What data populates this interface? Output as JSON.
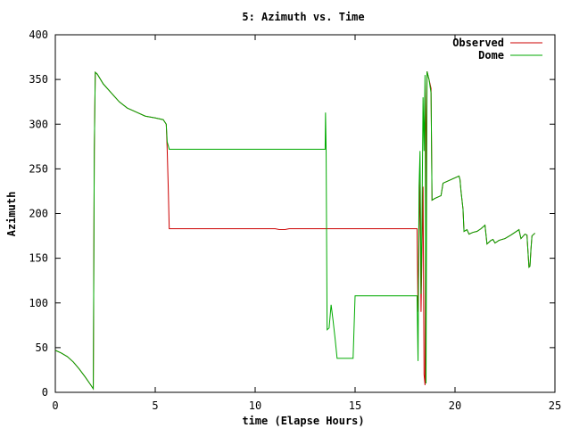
{
  "chart_data": {
    "type": "line",
    "title": "5: Azimuth vs. Time",
    "xlabel": "time (Elapse Hours)",
    "ylabel": "Azimuth",
    "xlim": [
      0,
      25
    ],
    "ylim": [
      0,
      400
    ],
    "x_ticks": [
      0,
      5,
      10,
      15,
      20,
      25
    ],
    "y_ticks": [
      0,
      50,
      100,
      150,
      200,
      250,
      300,
      350,
      400
    ],
    "grid": false,
    "legend_position": "top-right",
    "series": [
      {
        "name": "Observed",
        "color": "#cc0000",
        "points": [
          [
            0,
            47
          ],
          [
            0.3,
            44
          ],
          [
            0.6,
            40
          ],
          [
            0.9,
            34
          ],
          [
            1.2,
            26
          ],
          [
            1.5,
            17
          ],
          [
            1.75,
            9
          ],
          [
            1.9,
            4
          ],
          [
            1.95,
            270
          ],
          [
            2.0,
            358
          ],
          [
            2.1,
            356
          ],
          [
            2.4,
            345
          ],
          [
            2.8,
            335
          ],
          [
            3.2,
            325
          ],
          [
            3.6,
            318
          ],
          [
            4.0,
            314
          ],
          [
            4.5,
            309
          ],
          [
            5.0,
            307
          ],
          [
            5.4,
            305
          ],
          [
            5.55,
            300
          ],
          [
            5.6,
            270
          ],
          [
            5.65,
            230
          ],
          [
            5.7,
            183
          ],
          [
            11.0,
            183
          ],
          [
            11.2,
            182
          ],
          [
            11.5,
            182
          ],
          [
            11.7,
            183
          ],
          [
            18.1,
            183
          ],
          [
            18.15,
            90
          ],
          [
            18.2,
            180
          ],
          [
            18.25,
            240
          ],
          [
            18.3,
            90
          ],
          [
            18.35,
            160
          ],
          [
            18.4,
            230
          ],
          [
            18.45,
            20
          ],
          [
            18.5,
            8
          ],
          [
            18.55,
            300
          ],
          [
            18.6,
            359
          ],
          [
            18.7,
            350
          ],
          [
            18.8,
            340
          ],
          [
            18.85,
            215
          ],
          [
            19.0,
            217
          ],
          [
            19.1,
            218
          ],
          [
            19.3,
            220
          ],
          [
            19.4,
            234
          ],
          [
            19.6,
            236
          ],
          [
            19.8,
            238
          ],
          [
            20.0,
            240
          ],
          [
            20.2,
            242
          ],
          [
            20.25,
            238
          ],
          [
            20.3,
            225
          ],
          [
            20.4,
            205
          ],
          [
            20.45,
            180
          ],
          [
            20.6,
            182
          ],
          [
            20.7,
            177
          ],
          [
            20.9,
            179
          ],
          [
            21.1,
            180
          ],
          [
            21.3,
            183
          ],
          [
            21.5,
            187
          ],
          [
            21.6,
            166
          ],
          [
            21.8,
            170
          ],
          [
            21.9,
            171
          ],
          [
            22.0,
            167
          ],
          [
            22.2,
            170
          ],
          [
            22.5,
            172
          ],
          [
            22.8,
            176
          ],
          [
            23.0,
            179
          ],
          [
            23.2,
            182
          ],
          [
            23.3,
            172
          ],
          [
            23.5,
            177
          ],
          [
            23.6,
            176
          ],
          [
            23.7,
            140
          ],
          [
            23.75,
            141
          ],
          [
            23.8,
            160
          ],
          [
            23.85,
            175
          ],
          [
            24.0,
            178
          ]
        ]
      },
      {
        "name": "Dome",
        "color": "#00aa00",
        "points": [
          [
            0,
            47
          ],
          [
            0.3,
            44
          ],
          [
            0.6,
            40
          ],
          [
            0.9,
            34
          ],
          [
            1.2,
            26
          ],
          [
            1.5,
            17
          ],
          [
            1.75,
            9
          ],
          [
            1.9,
            4
          ],
          [
            1.95,
            270
          ],
          [
            2.0,
            358
          ],
          [
            2.1,
            356
          ],
          [
            2.4,
            345
          ],
          [
            2.8,
            335
          ],
          [
            3.2,
            325
          ],
          [
            3.6,
            318
          ],
          [
            4.0,
            314
          ],
          [
            4.5,
            309
          ],
          [
            5.0,
            307
          ],
          [
            5.4,
            305
          ],
          [
            5.55,
            300
          ],
          [
            5.6,
            280
          ],
          [
            5.7,
            272
          ],
          [
            13.5,
            272
          ],
          [
            13.52,
            313
          ],
          [
            13.55,
            273
          ],
          [
            13.6,
            70
          ],
          [
            13.7,
            72
          ],
          [
            13.8,
            98
          ],
          [
            13.9,
            80
          ],
          [
            14.0,
            60
          ],
          [
            14.1,
            38
          ],
          [
            14.9,
            38
          ],
          [
            15.0,
            108
          ],
          [
            18.1,
            108
          ],
          [
            18.15,
            35
          ],
          [
            18.2,
            230
          ],
          [
            18.25,
            270
          ],
          [
            18.3,
            110
          ],
          [
            18.35,
            200
          ],
          [
            18.4,
            330
          ],
          [
            18.45,
            270
          ],
          [
            18.5,
            355
          ],
          [
            18.55,
            10
          ],
          [
            18.6,
            359
          ],
          [
            18.7,
            350
          ],
          [
            18.8,
            335
          ],
          [
            18.85,
            215
          ],
          [
            19.0,
            217
          ],
          [
            19.1,
            218
          ],
          [
            19.3,
            220
          ],
          [
            19.4,
            234
          ],
          [
            19.6,
            236
          ],
          [
            19.8,
            238
          ],
          [
            20.0,
            240
          ],
          [
            20.2,
            242
          ],
          [
            20.25,
            238
          ],
          [
            20.3,
            225
          ],
          [
            20.4,
            205
          ],
          [
            20.45,
            180
          ],
          [
            20.6,
            182
          ],
          [
            20.7,
            177
          ],
          [
            20.9,
            179
          ],
          [
            21.1,
            180
          ],
          [
            21.3,
            183
          ],
          [
            21.5,
            187
          ],
          [
            21.6,
            166
          ],
          [
            21.8,
            170
          ],
          [
            21.9,
            171
          ],
          [
            22.0,
            167
          ],
          [
            22.2,
            170
          ],
          [
            22.5,
            172
          ],
          [
            22.8,
            176
          ],
          [
            23.0,
            179
          ],
          [
            23.2,
            182
          ],
          [
            23.3,
            172
          ],
          [
            23.5,
            177
          ],
          [
            23.6,
            176
          ],
          [
            23.7,
            140
          ],
          [
            23.75,
            141
          ],
          [
            23.8,
            160
          ],
          [
            23.85,
            175
          ],
          [
            24.0,
            178
          ]
        ]
      }
    ]
  }
}
